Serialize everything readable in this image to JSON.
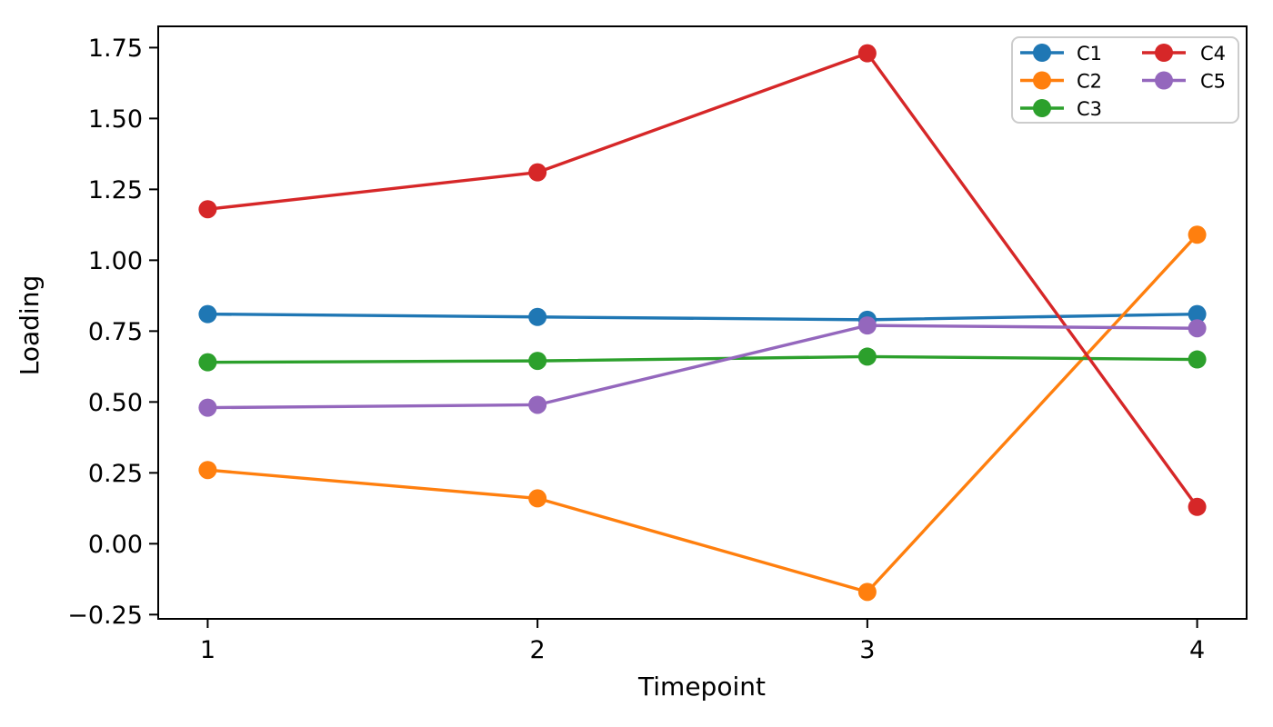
{
  "figure": {
    "background": "#ffffff",
    "axis_color": "#000000",
    "legend_border_color": "#cccccc",
    "legend_background": "#ffffff"
  },
  "chart_data": {
    "type": "line",
    "title": "",
    "xlabel": "Timepoint",
    "ylabel": "Loading",
    "x": [
      1,
      2,
      3,
      4
    ],
    "xticks": [
      1,
      2,
      3,
      4
    ],
    "yticks": [
      -0.25,
      0.0,
      0.25,
      0.5,
      0.75,
      1.0,
      1.25,
      1.5,
      1.75
    ],
    "xlim": [
      0.85,
      4.15
    ],
    "ylim": [
      -0.265,
      1.825
    ],
    "grid": false,
    "marker": "circle",
    "legend": {
      "position": "upper-right",
      "columns": 2,
      "entries": [
        "C1",
        "C2",
        "C3",
        "C4",
        "C5"
      ]
    },
    "series": [
      {
        "name": "C1",
        "color": "#1f77b4",
        "values": [
          0.81,
          0.8,
          0.79,
          0.81
        ]
      },
      {
        "name": "C2",
        "color": "#ff7f0e",
        "values": [
          0.26,
          0.16,
          -0.17,
          1.09
        ]
      },
      {
        "name": "C3",
        "color": "#2ca02c",
        "values": [
          0.64,
          0.645,
          0.66,
          0.65
        ]
      },
      {
        "name": "C4",
        "color": "#d62728",
        "values": [
          1.18,
          1.31,
          1.73,
          0.13
        ]
      },
      {
        "name": "C5",
        "color": "#9467bd",
        "values": [
          0.48,
          0.49,
          0.77,
          0.76
        ]
      }
    ]
  }
}
